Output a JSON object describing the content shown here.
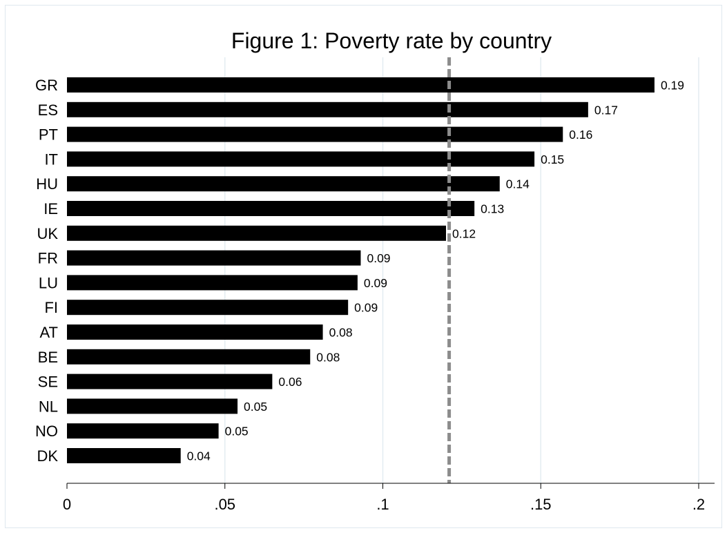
{
  "chart_data": {
    "type": "bar",
    "orientation": "horizontal",
    "title": "Figure 1: Poverty rate by country",
    "xlabel": "",
    "ylabel": "",
    "categories": [
      "GR",
      "ES",
      "PT",
      "IT",
      "HU",
      "IE",
      "UK",
      "FR",
      "LU",
      "FI",
      "AT",
      "BE",
      "SE",
      "NL",
      "NO",
      "DK"
    ],
    "values": [
      0.186,
      0.165,
      0.157,
      0.148,
      0.137,
      0.129,
      0.12,
      0.093,
      0.092,
      0.089,
      0.081,
      0.077,
      0.065,
      0.054,
      0.048,
      0.036
    ],
    "value_labels": [
      "0.19",
      "0.17",
      "0.16",
      "0.15",
      "0.14",
      "0.13",
      "0.12",
      "0.09",
      "0.09",
      "0.09",
      "0.08",
      "0.08",
      "0.06",
      "0.05",
      "0.05",
      "0.04"
    ],
    "xlim": [
      0,
      0.2
    ],
    "xticks": [
      0,
      0.05,
      0.1,
      0.15,
      0.2
    ],
    "xtick_labels": [
      "0",
      ".05",
      ".1",
      ".15",
      ".2"
    ],
    "reference_line": {
      "value": 0.121,
      "style": "dashed"
    },
    "grid": true,
    "legend": "none",
    "colors": {
      "bar": "#000000",
      "reference_line": "#8c8c8c",
      "grid": "#e3ecf1",
      "axis": "#000000"
    }
  }
}
